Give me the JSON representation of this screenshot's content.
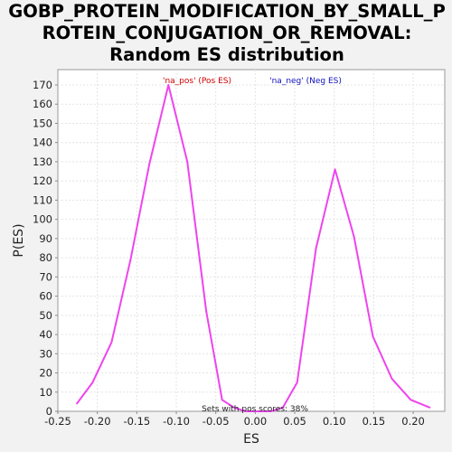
{
  "chart_data": {
    "type": "line",
    "title_lines": [
      "GOBP_PROTEIN_MODIFICATION_BY_SMALL_P",
      "ROTEIN_CONJUGATION_OR_REMOVAL:",
      "Random ES distribution"
    ],
    "xlabel": "ES",
    "ylabel": "P(ES)",
    "xlim": [
      -0.25,
      0.24
    ],
    "ylim": [
      0,
      178
    ],
    "x_ticks": [
      "-0.25",
      "-0.20",
      "-0.15",
      "-0.10",
      "-0.05",
      "0.00",
      "0.05",
      "0.10",
      "0.15",
      "0.20"
    ],
    "x_tick_values": [
      -0.25,
      -0.2,
      -0.15,
      -0.1,
      -0.05,
      0.0,
      0.05,
      0.1,
      0.15,
      0.2
    ],
    "y_ticks": [
      "0",
      "10",
      "20",
      "30",
      "40",
      "50",
      "60",
      "70",
      "80",
      "90",
      "100",
      "110",
      "120",
      "130",
      "140",
      "150",
      "160",
      "170"
    ],
    "y_tick_values": [
      0,
      10,
      20,
      30,
      40,
      50,
      60,
      70,
      80,
      90,
      100,
      110,
      120,
      130,
      140,
      150,
      160,
      170
    ],
    "grid": true,
    "series": [
      {
        "color": "#ee44ee",
        "x": [
          -0.226,
          -0.206,
          -0.182,
          -0.158,
          -0.134,
          -0.11,
          -0.086,
          -0.062,
          -0.042,
          -0.027,
          -0.012,
          0.005,
          0.02,
          0.035,
          0.053,
          0.077,
          0.101,
          0.125,
          0.149,
          0.173,
          0.197,
          0.221
        ],
        "y": [
          4,
          15,
          36,
          79,
          129,
          170,
          130,
          52,
          6,
          2,
          0,
          0,
          0,
          2,
          15,
          85,
          126,
          91,
          39,
          17,
          6,
          2
        ]
      }
    ],
    "legend": [
      {
        "label": "'na_pos' (Pos ES)",
        "color": "#cc0000"
      },
      {
        "label": "'na_neg' (Neg ES)",
        "color": "#1111bb"
      }
    ],
    "legend_position": "top",
    "annotation": "Sets with pos scores: 38%"
  }
}
